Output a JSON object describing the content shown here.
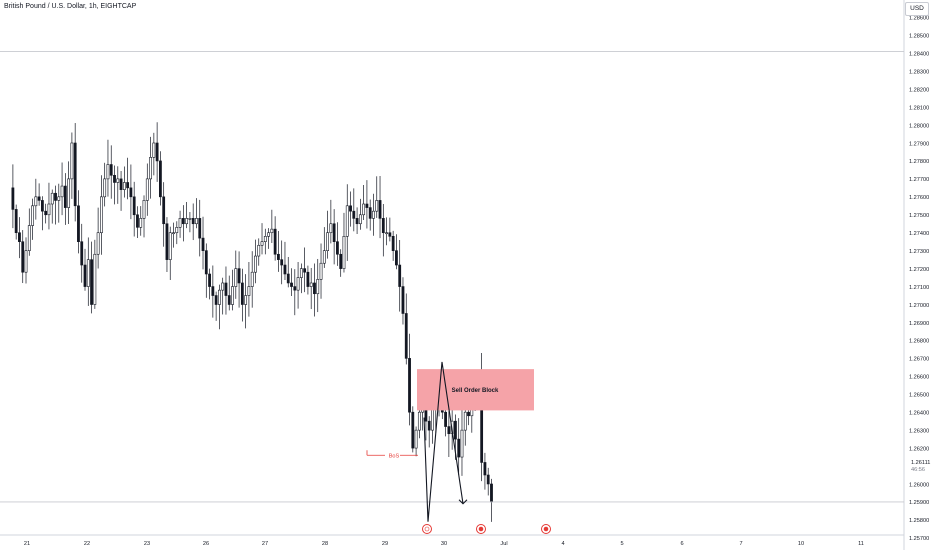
{
  "header": {
    "title": "British Pound / U.S. Dollar, 1h, EIGHTCAP",
    "currency": "USD"
  },
  "chart_data": {
    "type": "candlestick",
    "title": "British Pound / U.S. Dollar, 1h, EIGHTCAP",
    "ylim": [
      1.2566,
      1.2868
    ],
    "y_ticks": [
      "1.28600",
      "1.28500",
      "1.28400",
      "1.28300",
      "1.28200",
      "1.28100",
      "1.28000",
      "1.27900",
      "1.27800",
      "1.27700",
      "1.27600",
      "1.27500",
      "1.27400",
      "1.27300",
      "1.27200",
      "1.27100",
      "1.27000",
      "1.26900",
      "1.26800",
      "1.26700",
      "1.26600",
      "1.26500",
      "1.26400",
      "1.26300",
      "1.26200",
      "1.26000",
      "1.25900",
      "1.25800",
      "1.25700"
    ],
    "x_ticks": [
      "21",
      "22",
      "23",
      "26",
      "27",
      "28",
      "29",
      "30",
      "Jul",
      "4",
      "5",
      "6",
      "7",
      "10",
      "11"
    ],
    "current_price": "1.26111",
    "countdown": "46:56",
    "horizontal_lines": [
      1.2841,
      1.259
    ],
    "sell_order_block": {
      "label": "Sell Order Block",
      "low": 1.2641,
      "high": 1.2664
    },
    "bos_label": "BoS",
    "bos_level": 1.2616,
    "close_path": [
      1.2637,
      1.2579,
      1.2668,
      1.2589
    ],
    "candles_per_day": 24,
    "closes": [
      1.2765,
      1.2753,
      1.274,
      1.2735,
      1.2718,
      1.273,
      1.2744,
      1.2755,
      1.276,
      1.2758,
      1.2752,
      1.275,
      1.2756,
      1.2762,
      1.2758,
      1.276,
      1.2766,
      1.2754,
      1.277,
      1.279,
      1.2755,
      1.2735,
      1.2722,
      1.271,
      1.2725,
      1.27,
      1.2728,
      1.274,
      1.276,
      1.277,
      1.2778,
      1.2772,
      1.2768,
      1.277,
      1.2764,
      1.2768,
      1.2765,
      1.276,
      1.275,
      1.2743,
      1.2748,
      1.2758,
      1.277,
      1.2782,
      1.279,
      1.278,
      1.276,
      1.2745,
      1.2725,
      1.274,
      1.274,
      1.2743,
      1.2748,
      1.2745,
      1.2748,
      1.2748,
      1.2745,
      1.2748,
      1.2737,
      1.273,
      1.2717,
      1.271,
      1.2705,
      1.27,
      1.2708,
      1.2712,
      1.2705,
      1.27,
      1.271,
      1.272,
      1.2712,
      1.27,
      1.2705,
      1.271,
      1.2718,
      1.2727,
      1.2733,
      1.2735,
      1.2738,
      1.274,
      1.2742,
      1.2728,
      1.2725,
      1.2722,
      1.2717,
      1.2712,
      1.271,
      1.2708,
      1.2715,
      1.272,
      1.2718,
      1.271,
      1.2712,
      1.2706,
      1.2714,
      1.2723,
      1.273,
      1.274,
      1.2745,
      1.2735,
      1.2728,
      1.272,
      1.2738,
      1.2755,
      1.2752,
      1.2748,
      1.2745,
      1.275,
      1.2756,
      1.2754,
      1.2748,
      1.2752,
      1.2758,
      1.2748,
      1.274,
      1.274,
      1.2738,
      1.273,
      1.2722,
      1.271,
      1.2695,
      1.267,
      1.264,
      1.262,
      1.263,
      1.264,
      1.2648,
      1.2635,
      1.263,
      1.2642,
      1.265,
      1.2645,
      1.264,
      1.2632,
      1.2628,
      1.2635,
      1.2625,
      1.2615,
      1.263,
      1.264,
      1.2638,
      1.265,
      1.2655,
      1.266,
      1.2612,
      1.2605,
      1.26,
      1.259
    ]
  }
}
